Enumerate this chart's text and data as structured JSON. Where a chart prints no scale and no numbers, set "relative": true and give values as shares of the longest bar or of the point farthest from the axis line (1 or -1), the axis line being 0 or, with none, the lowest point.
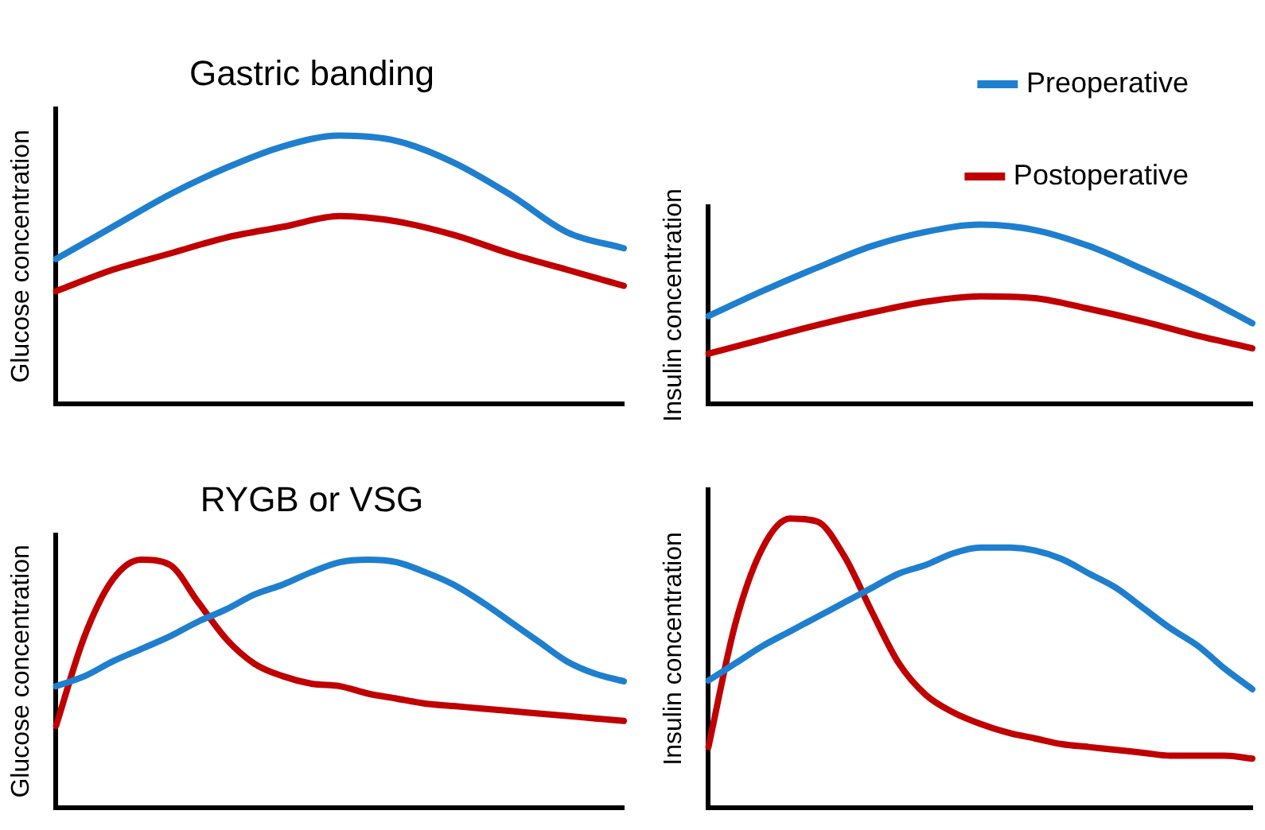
{
  "chart_data": [
    {
      "type": "line",
      "title": "Gastric banding",
      "ylabel": "Glucose concentration",
      "relative": true,
      "categories": [
        null,
        null,
        null,
        null,
        null,
        null,
        null,
        null,
        null,
        null,
        null
      ],
      "series": [
        {
          "color": "#1f7fcf",
          "values": [
            0.54,
            0.66,
            0.78,
            0.88,
            0.96,
            1,
            0.98,
            0.9,
            0.78,
            0.64,
            0.58
          ]
        },
        {
          "color": "#c00000",
          "values": [
            0.42,
            0.5,
            0.56,
            0.62,
            0.66,
            0.7,
            0.68,
            0.63,
            0.56,
            0.5,
            0.44
          ]
        }
      ]
    },
    {
      "type": "line",
      "ylabel": "Insulin concentration",
      "relative": true,
      "legend": "top right",
      "categories": [
        null,
        null,
        null,
        null,
        null,
        null,
        null,
        null,
        null,
        null,
        null
      ],
      "series": [
        {
          "name": "Preoperative",
          "color": "#1f7fcf",
          "values": [
            0.49,
            0.63,
            0.76,
            0.88,
            0.96,
            1,
            0.97,
            0.88,
            0.75,
            0.61,
            0.45
          ]
        },
        {
          "name": "Postoperative",
          "color": "#c00000",
          "values": [
            0.28,
            0.36,
            0.44,
            0.51,
            0.57,
            0.6,
            0.59,
            0.53,
            0.46,
            0.38,
            0.31
          ]
        }
      ]
    },
    {
      "type": "line",
      "title": "RYGB or VSG",
      "ylabel": "Glucose concentration",
      "relative": true,
      "categories": [
        null,
        null,
        null,
        null,
        null,
        null,
        null,
        null,
        null,
        null,
        null,
        null,
        null,
        null,
        null,
        null,
        null,
        null,
        null,
        null,
        null
      ],
      "series": [
        {
          "color": "#1f7fcf",
          "values": [
            0.49,
            0.53,
            0.59,
            0.64,
            0.69,
            0.75,
            0.8,
            0.86,
            0.9,
            0.95,
            0.99,
            1,
            0.99,
            0.95,
            0.9,
            0.83,
            0.75,
            0.67,
            0.59,
            0.54,
            0.51
          ]
        },
        {
          "color": "#c00000",
          "values": [
            0.33,
            0.69,
            0.92,
            1,
            0.98,
            0.83,
            0.68,
            0.58,
            0.53,
            0.5,
            0.49,
            0.46,
            0.44,
            0.42,
            0.41,
            0.4,
            0.39,
            0.38,
            0.37,
            0.36,
            0.35
          ]
        }
      ]
    },
    {
      "type": "line",
      "ylabel": "Insulin concentration",
      "relative": true,
      "categories": [
        null,
        null,
        null,
        null,
        null,
        null,
        null,
        null,
        null,
        null,
        null,
        null,
        null,
        null,
        null,
        null,
        null,
        null,
        null,
        null,
        null
      ],
      "series": [
        {
          "color": "#1f7fcf",
          "values": [
            0.44,
            0.5,
            0.56,
            0.61,
            0.66,
            0.71,
            0.76,
            0.81,
            0.84,
            0.88,
            0.9,
            0.9,
            0.89,
            0.86,
            0.81,
            0.76,
            0.69,
            0.62,
            0.56,
            0.48,
            0.41
          ]
        },
        {
          "color": "#c00000",
          "values": [
            0.21,
            0.64,
            0.9,
            1,
            0.99,
            0.87,
            0.68,
            0.5,
            0.39,
            0.33,
            0.29,
            0.26,
            0.24,
            0.22,
            0.21,
            0.2,
            0.19,
            0.18,
            0.18,
            0.18,
            0.17
          ]
        }
      ]
    }
  ]
}
